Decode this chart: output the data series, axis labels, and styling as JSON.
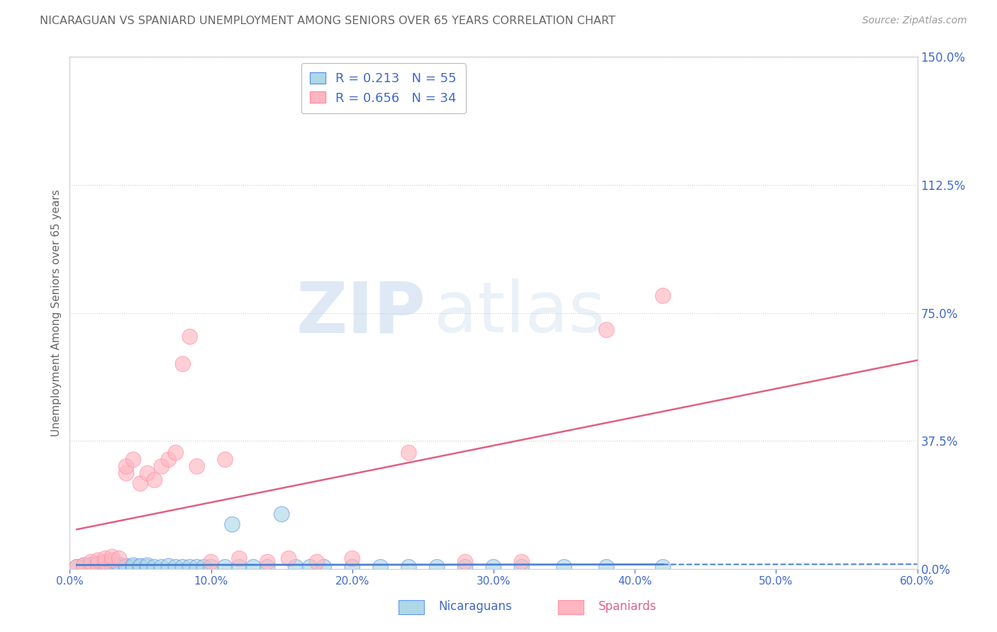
{
  "title": "NICARAGUAN VS SPANIARD UNEMPLOYMENT AMONG SENIORS OVER 65 YEARS CORRELATION CHART",
  "source": "Source: ZipAtlas.com",
  "ylabel": "Unemployment Among Seniors over 65 years",
  "xlabel": "",
  "xlim": [
    0.0,
    0.6
  ],
  "ylim": [
    0.0,
    1.5
  ],
  "yticks": [
    0.0,
    0.375,
    0.75,
    1.125,
    1.5
  ],
  "ytick_labels": [
    "0.0%",
    "37.5%",
    "75.0%",
    "112.5%",
    "150.0%"
  ],
  "xticks": [
    0.0,
    0.1,
    0.2,
    0.3,
    0.4,
    0.5,
    0.6
  ],
  "xtick_labels": [
    "0.0%",
    "10.0%",
    "20.0%",
    "30.0%",
    "40.0%",
    "50.0%",
    "60.0%"
  ],
  "nicaraguan_fill": "#add8e6",
  "nicaraguan_edge": "#6495ed",
  "spaniard_fill": "#ffb6c1",
  "spaniard_edge": "#ff8fa3",
  "trend_nic_color": "#5080d0",
  "trend_spa_color": "#e06080",
  "R_nicaraguan": 0.213,
  "N_nicaraguan": 55,
  "R_spaniard": 0.656,
  "N_spaniard": 34,
  "nicaraguan_x": [
    0.005,
    0.01,
    0.01,
    0.015,
    0.015,
    0.015,
    0.02,
    0.02,
    0.02,
    0.02,
    0.025,
    0.025,
    0.025,
    0.03,
    0.03,
    0.03,
    0.035,
    0.035,
    0.035,
    0.04,
    0.04,
    0.045,
    0.045,
    0.05,
    0.05,
    0.055,
    0.055,
    0.06,
    0.065,
    0.07,
    0.075,
    0.08,
    0.085,
    0.09,
    0.095,
    0.1,
    0.11,
    0.115,
    0.12,
    0.13,
    0.14,
    0.15,
    0.16,
    0.17,
    0.18,
    0.2,
    0.22,
    0.24,
    0.26,
    0.28,
    0.3,
    0.32,
    0.35,
    0.38,
    0.42
  ],
  "nicaraguan_y": [
    0.005,
    0.005,
    0.01,
    0.005,
    0.008,
    0.012,
    0.005,
    0.008,
    0.01,
    0.015,
    0.005,
    0.008,
    0.012,
    0.005,
    0.008,
    0.01,
    0.005,
    0.008,
    0.012,
    0.005,
    0.008,
    0.005,
    0.01,
    0.005,
    0.008,
    0.005,
    0.01,
    0.005,
    0.005,
    0.008,
    0.005,
    0.005,
    0.005,
    0.005,
    0.005,
    0.005,
    0.005,
    0.13,
    0.005,
    0.005,
    0.005,
    0.16,
    0.005,
    0.005,
    0.005,
    0.005,
    0.005,
    0.005,
    0.005,
    0.005,
    0.005,
    0.005,
    0.005,
    0.005,
    0.005
  ],
  "spaniard_x": [
    0.005,
    0.01,
    0.015,
    0.02,
    0.02,
    0.025,
    0.025,
    0.03,
    0.03,
    0.035,
    0.04,
    0.04,
    0.045,
    0.05,
    0.055,
    0.06,
    0.065,
    0.07,
    0.075,
    0.08,
    0.085,
    0.09,
    0.1,
    0.11,
    0.12,
    0.14,
    0.155,
    0.175,
    0.2,
    0.24,
    0.28,
    0.32,
    0.38,
    0.42
  ],
  "spaniard_y": [
    0.005,
    0.01,
    0.02,
    0.01,
    0.025,
    0.02,
    0.03,
    0.025,
    0.035,
    0.03,
    0.28,
    0.3,
    0.32,
    0.25,
    0.28,
    0.26,
    0.3,
    0.32,
    0.34,
    0.6,
    0.68,
    0.3,
    0.02,
    0.32,
    0.03,
    0.02,
    0.03,
    0.02,
    0.03,
    0.34,
    0.02,
    0.02,
    0.7,
    0.8
  ],
  "watermark_zip": "ZIP",
  "watermark_atlas": "atlas",
  "background_color": "#ffffff",
  "grid_color": "#cccccc",
  "axis_color": "#4169cd",
  "title_color": "#666666",
  "source_color": "#999999",
  "legend_text_color": "#4169cd"
}
